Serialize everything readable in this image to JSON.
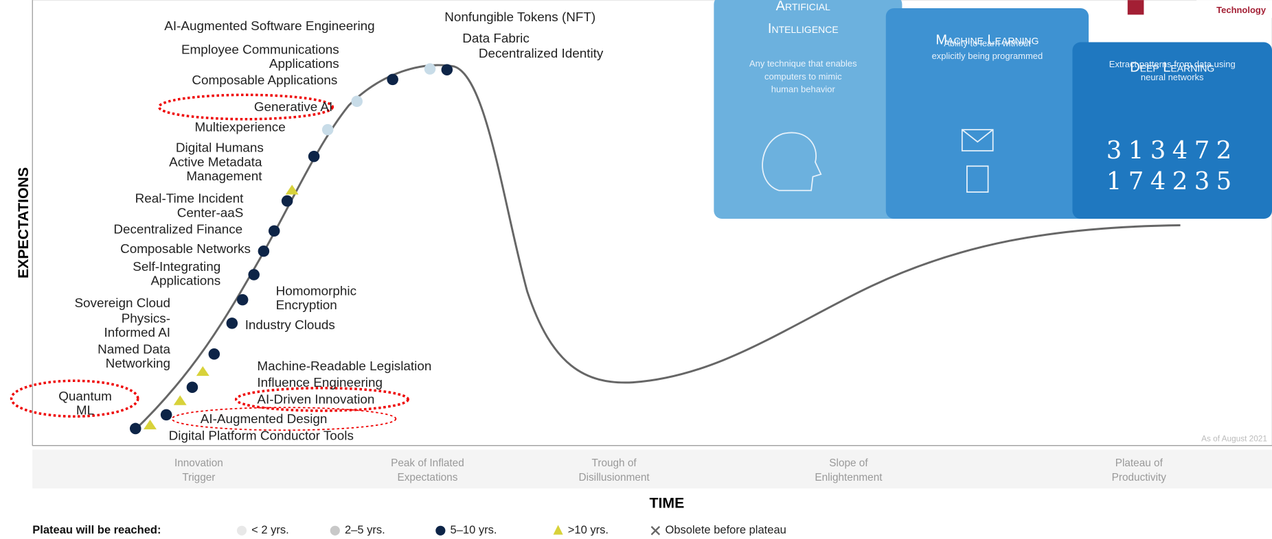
{
  "axis": {
    "y_label": "EXPECTATIONS",
    "x_label": "TIME"
  },
  "technologies": [
    {
      "lines": [
        "Nonfungible Tokens (NFT)"
      ]
    },
    {
      "lines": [
        "Data Fabric"
      ]
    },
    {
      "lines": [
        "Decentralized Identity"
      ]
    },
    {
      "lines": [
        "AI-Augmented Software Engineering"
      ]
    },
    {
      "lines": [
        "Employee Communications",
        "Applications"
      ]
    },
    {
      "lines": [
        "Composable Applications"
      ]
    },
    {
      "lines": [
        "Generative AI"
      ]
    },
    {
      "lines": [
        "Multiexperience"
      ]
    },
    {
      "lines": [
        "Digital Humans"
      ]
    },
    {
      "lines": [
        "Active Metadata",
        "Management"
      ]
    },
    {
      "lines": [
        "Real-Time Incident",
        "Center-aaS"
      ]
    },
    {
      "lines": [
        "Decentralized Finance"
      ]
    },
    {
      "lines": [
        "Composable Networks"
      ]
    },
    {
      "lines": [
        "Self-Integrating",
        "Applications"
      ]
    },
    {
      "lines": [
        "Homomorphic",
        "Encryption"
      ]
    },
    {
      "lines": [
        "Sovereign Cloud"
      ]
    },
    {
      "lines": [
        "Physics-",
        "Informed AI"
      ]
    },
    {
      "lines": [
        "Industry Clouds"
      ]
    },
    {
      "lines": [
        "Named Data",
        "Networking"
      ]
    },
    {
      "lines": [
        "Machine-Readable Legislation"
      ]
    },
    {
      "lines": [
        "Influence Engineering"
      ]
    },
    {
      "lines": [
        "AI-Driven Innovation"
      ]
    },
    {
      "lines": [
        "Quantum",
        "ML"
      ]
    },
    {
      "lines": [
        "AI-Augmented Design"
      ]
    },
    {
      "lines": [
        "Digital Platform Conductor Tools"
      ]
    }
  ],
  "phases": [
    {
      "lines": [
        "Innovation",
        "Trigger"
      ]
    },
    {
      "lines": [
        "Peak of Inflated",
        "Expectations"
      ]
    },
    {
      "lines": [
        "Trough of",
        "Disillusionment"
      ]
    },
    {
      "lines": [
        "Slope of",
        "Enlightenment"
      ]
    },
    {
      "lines": [
        "Plateau of",
        "Productivity"
      ]
    }
  ],
  "source": "As of August 2021",
  "legend": {
    "title": "Plateau will be reached:",
    "items": [
      "< 2 yrs.",
      "2–5 yrs.",
      "5–10 yrs.",
      ">10 yrs.",
      "Obsolete before plateau"
    ]
  },
  "panels": [
    {
      "title": [
        "Artificial",
        "Intelligence"
      ],
      "text": [
        "Any technique that enables",
        "computers to mimic",
        "human behavior"
      ]
    },
    {
      "title": [
        "Machine Learning"
      ],
      "text": [
        "Ability to learn without",
        "explicitly being programmed"
      ]
    },
    {
      "title": [
        "Deep Learning"
      ],
      "text": [
        "Extract patterns from data using",
        "neural networks"
      ],
      "digits": [
        "313472",
        "174235"
      ]
    }
  ],
  "logo": "Technology"
}
